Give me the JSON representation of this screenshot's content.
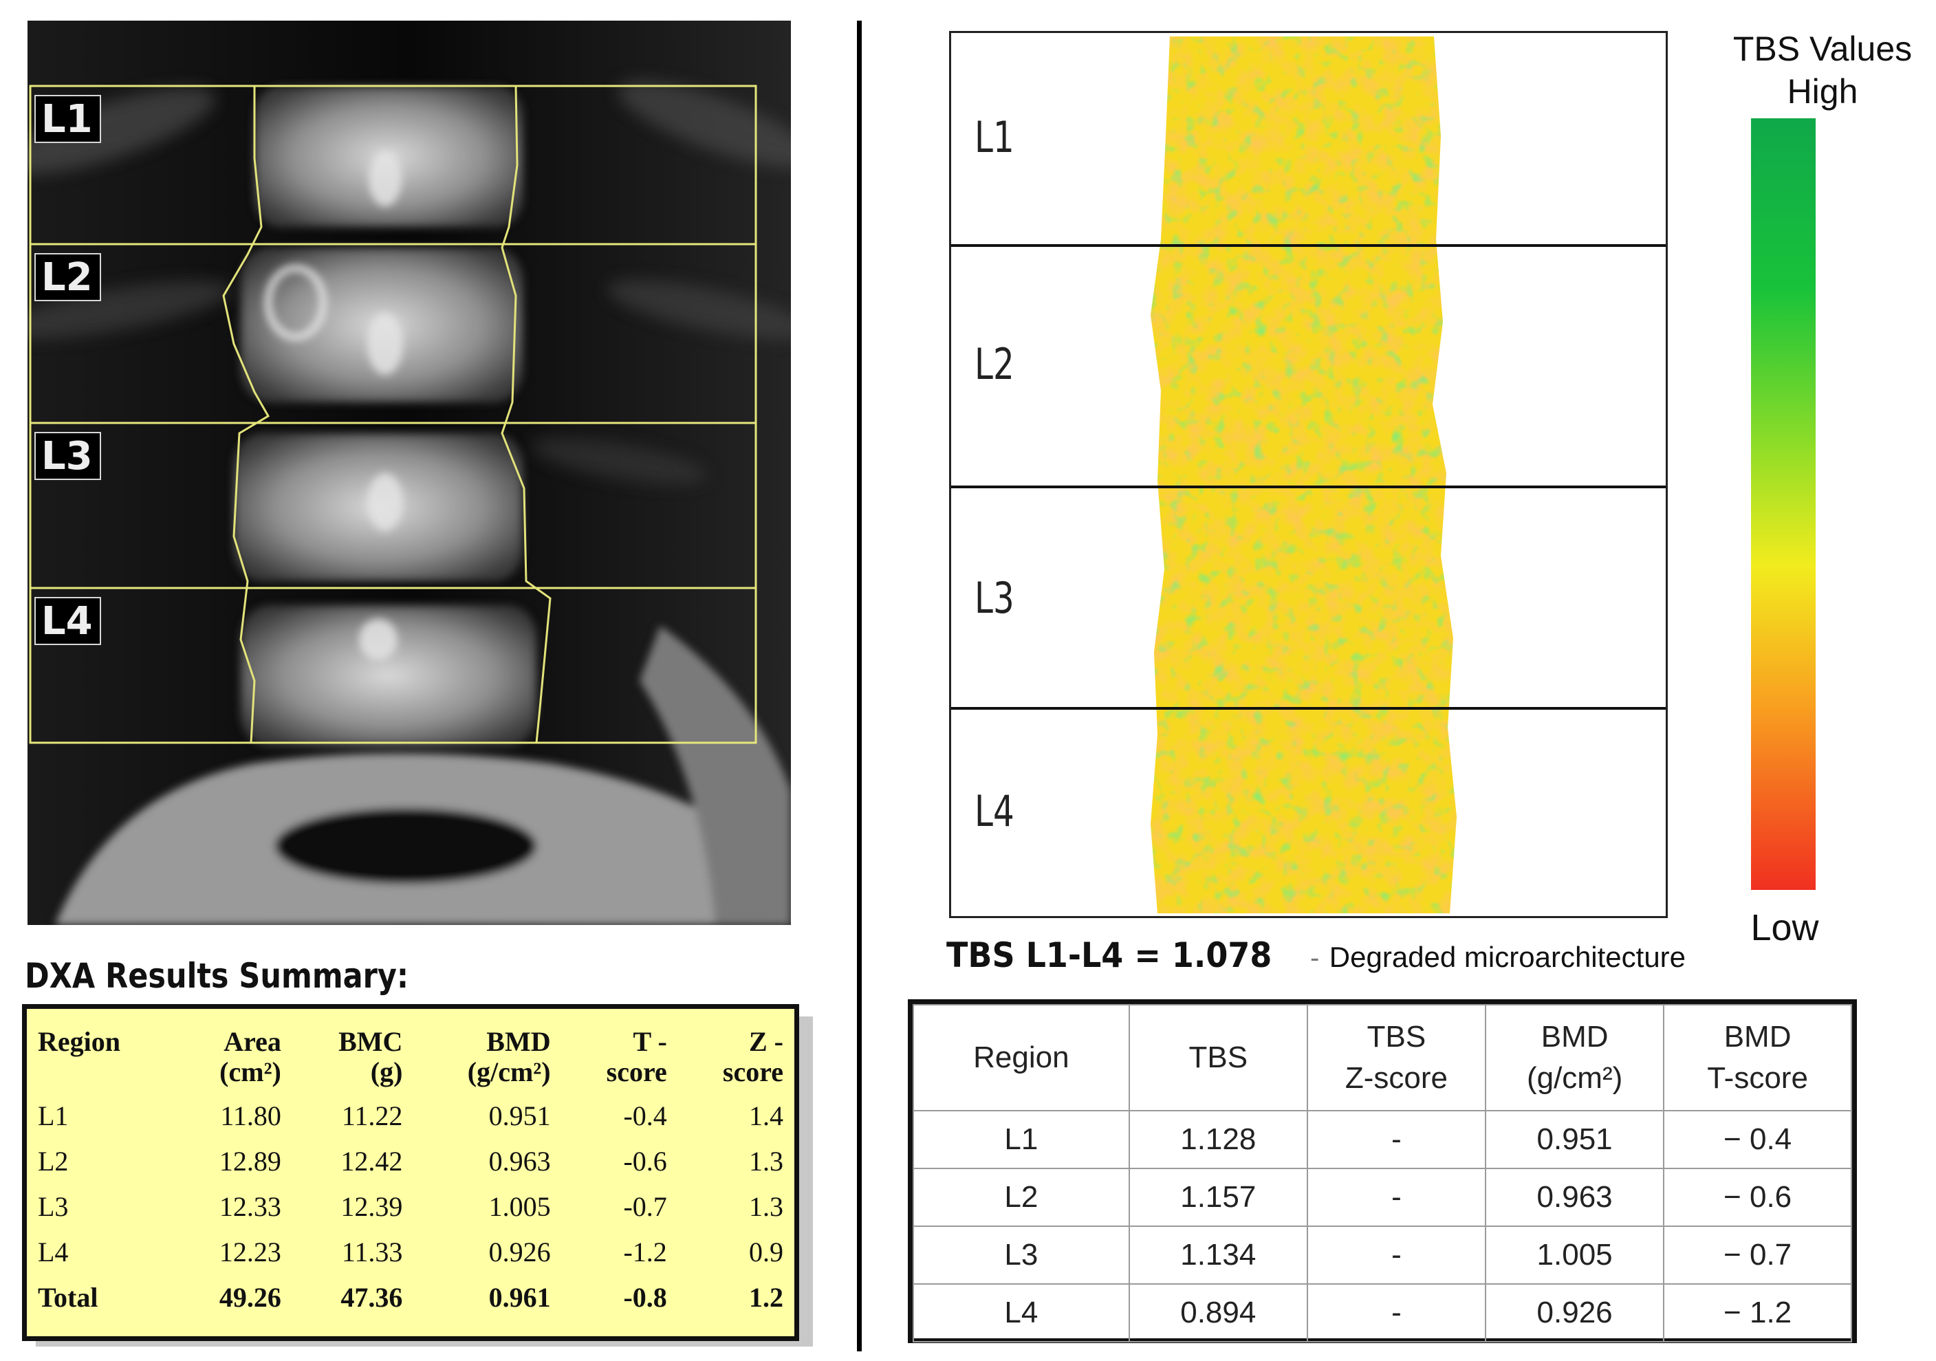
{
  "dxa": {
    "vertebra_labels": [
      "L1",
      "L2",
      "L3",
      "L4"
    ],
    "summary_heading": "DXA Results Summary:",
    "table": {
      "headers": [
        {
          "line1": "Region",
          "line2": ""
        },
        {
          "line1": "Area",
          "line2": "(cm²)"
        },
        {
          "line1": "BMC",
          "line2": "(g)"
        },
        {
          "line1": "BMD",
          "line2": "(g/cm²)"
        },
        {
          "line1": "T -",
          "line2": "score"
        },
        {
          "line1": "Z -",
          "line2": "score"
        }
      ],
      "rows": [
        [
          "L1",
          "11.80",
          "11.22",
          "0.951",
          "-0.4",
          "1.4"
        ],
        [
          "L2",
          "12.89",
          "12.42",
          "0.963",
          "-0.6",
          "1.3"
        ],
        [
          "L3",
          "12.33",
          "12.39",
          "1.005",
          "-0.7",
          "1.3"
        ],
        [
          "L4",
          "12.23",
          "11.33",
          "0.926",
          "-1.2",
          "0.9"
        ]
      ],
      "total": [
        "Total",
        "49.26",
        "47.36",
        "0.961",
        "-0.8",
        "1.2"
      ]
    }
  },
  "tbs": {
    "vertebra_labels": [
      "L1",
      "L2",
      "L3",
      "L4"
    ],
    "legend": {
      "title_line1": "TBS Values",
      "title_line2": "High",
      "low_label": "Low"
    },
    "legend_colors": {
      "high": "#10a84a",
      "mid": "#f2ec1e",
      "low": "#f03020"
    },
    "summary_value": "TBS L1-L4 = 1.078",
    "summary_separator": "-",
    "summary_note": "Degraded microarchitecture",
    "table": {
      "headers": [
        {
          "line1": "Region",
          "line2": ""
        },
        {
          "line1": "TBS",
          "line2": ""
        },
        {
          "line1": "TBS",
          "line2": "Z-score"
        },
        {
          "line1": "BMD",
          "line2": "(g/cm²)"
        },
        {
          "line1": "BMD",
          "line2": "T-score"
        }
      ],
      "rows": [
        [
          "L1",
          "1.128",
          "-",
          "0.951",
          "− 0.4"
        ],
        [
          "L2",
          "1.157",
          "-",
          "0.963",
          "− 0.6"
        ],
        [
          "L3",
          "1.134",
          "-",
          "1.005",
          "− 0.7"
        ],
        [
          "L4",
          "0.894",
          "-",
          "0.926",
          "− 1.2"
        ]
      ]
    }
  }
}
